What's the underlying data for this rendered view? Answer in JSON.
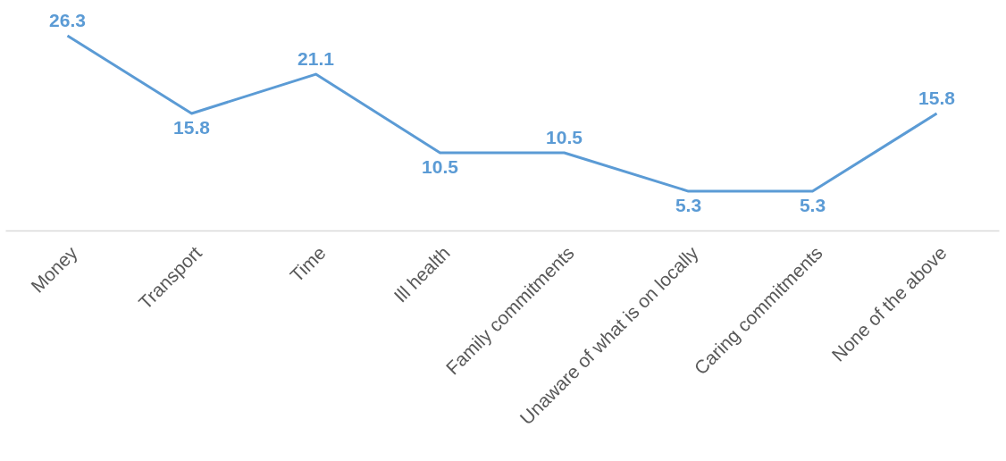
{
  "chart_data": {
    "type": "line",
    "categories": [
      "Money",
      "Transport",
      "Time",
      "Ill health",
      "Family commitments",
      "Unaware of what is on locally",
      "Caring commitments",
      "None of the above"
    ],
    "series": [
      {
        "color": "#5b9bd5",
        "values": [
          26.3,
          15.8,
          21.1,
          10.5,
          10.5,
          5.3,
          5.3,
          15.8
        ]
      }
    ],
    "data_labels": true,
    "grid": false,
    "legend": false,
    "marker": "none",
    "line_style": "solid",
    "tick_labels": "x"
  }
}
